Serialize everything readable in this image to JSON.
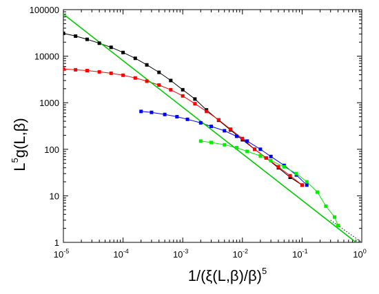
{
  "chart_data": {
    "type": "scatter",
    "x_scale": "log",
    "y_scale": "log",
    "xlim": [
      1e-05,
      1
    ],
    "ylim": [
      1,
      100000
    ],
    "grid": false,
    "xlabel": {
      "prefix": "1/(ξ(L,β)/β)",
      "superscript": "5"
    },
    "ylabel": {
      "prefix": "L",
      "superscript": "5",
      "suffix": "g(L,β)"
    },
    "x_ticks": [
      {
        "value": 1e-05,
        "base": "10",
        "exp": "-5"
      },
      {
        "value": 0.0001,
        "base": "10",
        "exp": "-4"
      },
      {
        "value": 0.001,
        "base": "10",
        "exp": "-3"
      },
      {
        "value": 0.01,
        "base": "10",
        "exp": "-2"
      },
      {
        "value": 0.1,
        "base": "10",
        "exp": "-1"
      },
      {
        "value": 1,
        "base": "10",
        "exp": "0"
      }
    ],
    "y_ticks": [
      {
        "value": 1,
        "label": "1"
      },
      {
        "value": 10,
        "label": "10"
      },
      {
        "value": 100,
        "label": "100"
      },
      {
        "value": 1000,
        "label": "1000"
      },
      {
        "value": 10000,
        "label": "10000"
      },
      {
        "value": 100000,
        "label": "100000"
      }
    ],
    "series": [
      {
        "color": "#000000",
        "marker": "square",
        "points": [
          [
            1e-05,
            31000
          ],
          [
            1.6e-05,
            27000
          ],
          [
            2.5e-05,
            23000
          ],
          [
            4e-05,
            19000
          ],
          [
            6.3e-05,
            15500
          ],
          [
            0.0001,
            12000
          ],
          [
            0.00016,
            9000
          ],
          [
            0.00025,
            6500
          ],
          [
            0.0004,
            4500
          ],
          [
            0.00063,
            3000
          ],
          [
            0.001,
            1900
          ],
          [
            0.0016,
            1200
          ],
          [
            0.0025,
            700
          ],
          [
            0.004,
            420
          ],
          [
            0.0063,
            260
          ],
          [
            0.01,
            160
          ],
          [
            0.016,
            100
          ],
          [
            0.025,
            65
          ],
          [
            0.04,
            40
          ],
          [
            0.063,
            25
          ],
          [
            0.1,
            17
          ]
        ]
      },
      {
        "color": "#ff0000",
        "marker": "square",
        "points": [
          [
            1e-05,
            5300
          ],
          [
            1.6e-05,
            5100
          ],
          [
            2.5e-05,
            4900
          ],
          [
            4e-05,
            4600
          ],
          [
            6.3e-05,
            4300
          ],
          [
            0.0001,
            3900
          ],
          [
            0.00016,
            3400
          ],
          [
            0.00025,
            2900
          ],
          [
            0.0004,
            2400
          ],
          [
            0.00063,
            1900
          ],
          [
            0.001,
            1400
          ],
          [
            0.0016,
            950
          ],
          [
            0.0025,
            650
          ],
          [
            0.004,
            430
          ],
          [
            0.0063,
            270
          ],
          [
            0.01,
            170
          ],
          [
            0.016,
            100
          ],
          [
            0.025,
            65
          ],
          [
            0.04,
            42
          ],
          [
            0.063,
            27
          ],
          [
            0.1,
            17
          ]
        ]
      },
      {
        "color": "#0000ff",
        "marker": "square",
        "points": [
          [
            0.0002,
            650
          ],
          [
            0.0003,
            620
          ],
          [
            0.0005,
            560
          ],
          [
            0.0008,
            500
          ],
          [
            0.0012,
            440
          ],
          [
            0.002,
            370
          ],
          [
            0.003,
            310
          ],
          [
            0.005,
            250
          ],
          [
            0.008,
            190
          ],
          [
            0.012,
            150
          ],
          [
            0.02,
            100
          ],
          [
            0.03,
            70
          ],
          [
            0.05,
            45
          ],
          [
            0.08,
            28
          ],
          [
            0.12,
            17
          ]
        ]
      },
      {
        "color": "#00ee00",
        "marker": "square",
        "points": [
          [
            0.002,
            150
          ],
          [
            0.003,
            140
          ],
          [
            0.005,
            125
          ],
          [
            0.008,
            108
          ],
          [
            0.012,
            90
          ],
          [
            0.02,
            72
          ],
          [
            0.03,
            57
          ],
          [
            0.05,
            42
          ],
          [
            0.08,
            30
          ],
          [
            0.12,
            20
          ],
          [
            0.18,
            12
          ],
          [
            0.25,
            6
          ],
          [
            0.35,
            3.5
          ],
          [
            0.4,
            2.3
          ]
        ]
      }
    ],
    "fit_lines": [
      {
        "color": "#00cc00",
        "style": "solid",
        "from": [
          1e-05,
          80000
        ],
        "to": [
          0.8,
          1
        ]
      },
      {
        "color": "#000000",
        "style": "dotted",
        "from": [
          0.3,
          3
        ],
        "to": [
          1,
          1
        ]
      }
    ]
  }
}
